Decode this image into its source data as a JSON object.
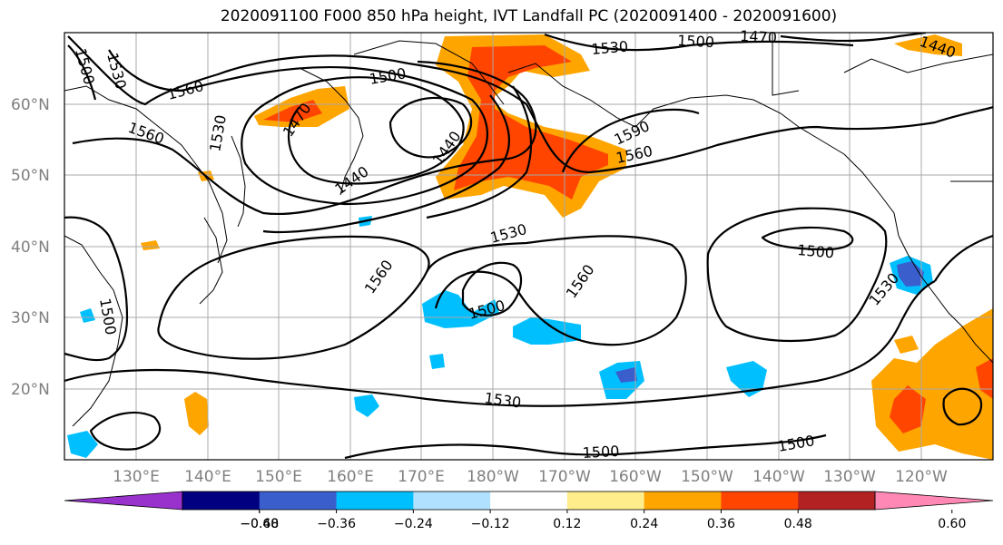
{
  "title": "2020091100 F000 850 hPa height, IVT Landfall PC (2020091400 - 2020091600)",
  "map": {
    "lat_ticks": [
      "60°N",
      "50°N",
      "40°N",
      "30°N",
      "20°N"
    ],
    "lon_ticks": [
      "130°E",
      "140°E",
      "150°E",
      "160°E",
      "170°E",
      "180°W",
      "170°W",
      "160°W",
      "150°W",
      "140°W",
      "130°W",
      "120°W"
    ],
    "contour_labels": [
      "1500",
      "1530",
      "1560",
      "1560",
      "1500",
      "1470",
      "1530",
      "1440",
      "1440",
      "1530",
      "1500",
      "1470",
      "1440",
      "1590",
      "1560",
      "1530",
      "1560",
      "1560",
      "1500",
      "1500",
      "1530",
      "1500",
      "1500",
      "1530",
      "1500"
    ]
  },
  "colorbar": {
    "ticks": [
      "−0.60",
      "−0.48",
      "−0.36",
      "−0.24",
      "−0.12",
      "0.12",
      "0.24",
      "0.36",
      "0.48",
      "0.60"
    ],
    "colors": [
      "#9932cc",
      "#000080",
      "#3a5fcd",
      "#00bfff",
      "#b0e2ff",
      "#ffffff",
      "#ffec8b",
      "#ffa500",
      "#ff4500",
      "#b22222",
      "#ff89b4"
    ]
  }
}
